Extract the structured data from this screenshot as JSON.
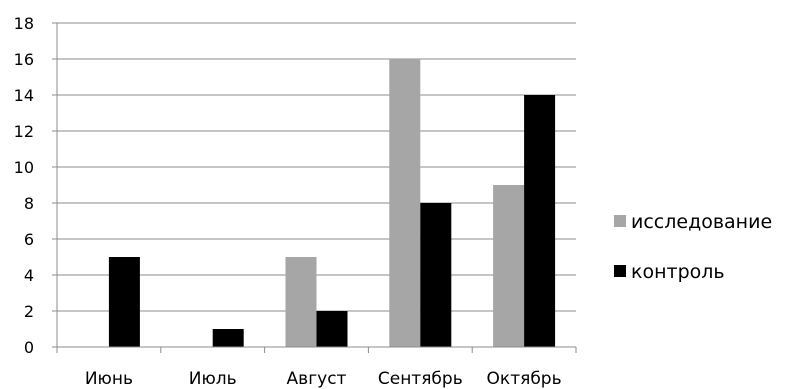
{
  "chart_data": {
    "type": "bar",
    "categories": [
      "Июнь",
      "Июль",
      "Август",
      "Сентябрь",
      "Октябрь"
    ],
    "series": [
      {
        "name": "исследование",
        "values": [
          0,
          0,
          5,
          16,
          9
        ],
        "color": "#a6a6a6"
      },
      {
        "name": "контроль",
        "values": [
          5,
          1,
          2,
          8,
          14
        ],
        "color": "#000000"
      }
    ],
    "title": "",
    "xlabel": "",
    "ylabel": "",
    "ylim": [
      0,
      18
    ],
    "y_ticks": [
      "0",
      "2",
      "4",
      "6",
      "8",
      "10",
      "12",
      "14",
      "16",
      "18"
    ],
    "grid": "horizontal",
    "legend_position": "right"
  }
}
